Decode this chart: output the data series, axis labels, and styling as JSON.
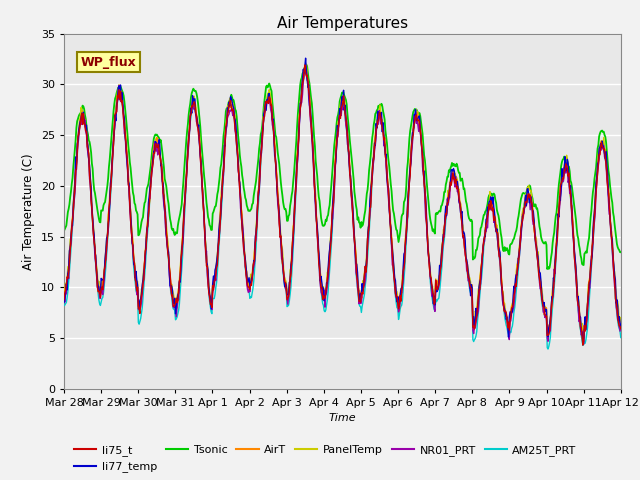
{
  "title": "Air Temperatures",
  "xlabel": "Time",
  "ylabel": "Air Temperature (C)",
  "ylim": [
    0,
    35
  ],
  "colors": {
    "li75_t": "#cc0000",
    "li77_temp": "#0000cc",
    "Tsonic": "#00cc00",
    "AirT": "#ff8800",
    "PanelTemp": "#cccc00",
    "NR01_PRT": "#9900aa",
    "AM25T_PRT": "#00cccc"
  },
  "annotation_text": "WP_flux",
  "tick_labels": [
    "Mar 28",
    "Mar 29",
    "Mar 30",
    "Mar 31",
    "Apr 1",
    "Apr 2",
    "Apr 3",
    "Apr 4",
    "Apr 5",
    "Apr 6",
    "Apr 7",
    "Apr 8",
    "Apr 9",
    "Apr 10",
    "Apr 11",
    "Apr 12"
  ],
  "background_color": "#e8e8e8",
  "grid_color": "#ffffff",
  "yticks": [
    0,
    5,
    10,
    15,
    20,
    25,
    30,
    35
  ],
  "fig_bg": "#f2f2f2"
}
